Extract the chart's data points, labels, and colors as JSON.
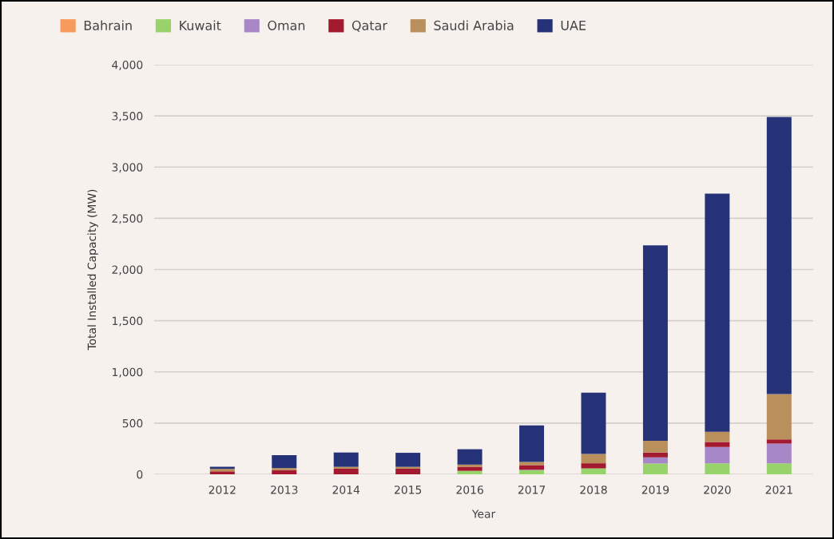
{
  "chart_data": {
    "type": "bar",
    "stacked": true,
    "xlabel": "Year",
    "ylabel": "Total Installed Capacity (MW)",
    "categories": [
      "2012",
      "2013",
      "2014",
      "2015",
      "2016",
      "2017",
      "2018",
      "2019",
      "2020",
      "2021"
    ],
    "series": [
      {
        "name": "Bahrain",
        "color": "#f79a5c",
        "values": [
          0,
          0,
          0,
          0,
          0,
          0,
          0,
          0,
          0,
          0
        ]
      },
      {
        "name": "Kuwait",
        "color": "#98d26a",
        "values": [
          0,
          0,
          0,
          0,
          34,
          40,
          58,
          105,
          108,
          108
        ]
      },
      {
        "name": "Oman",
        "color": "#a887c8",
        "values": [
          0,
          0,
          0,
          0,
          0,
          5,
          0,
          60,
          160,
          192
        ]
      },
      {
        "name": "Qatar",
        "color": "#a3192f",
        "values": [
          29,
          40,
          55,
          55,
          40,
          45,
          50,
          47,
          47,
          42
        ]
      },
      {
        "name": "Saudi Arabia",
        "color": "#b98f5b",
        "values": [
          24,
          21,
          18,
          18,
          21,
          30,
          90,
          116,
          100,
          442
        ]
      },
      {
        "name": "UAE",
        "color": "#253278",
        "values": [
          21,
          126,
          140,
          137,
          150,
          358,
          600,
          1907,
          2325,
          2706
        ]
      }
    ],
    "ylim": [
      0,
      4000
    ],
    "yticks": [
      {
        "value": 0,
        "label": "0"
      },
      {
        "value": 500,
        "label": "500"
      },
      {
        "value": 1000,
        "label": "1,000"
      },
      {
        "value": 1500,
        "label": "1,500"
      },
      {
        "value": 2000,
        "label": "2,000"
      },
      {
        "value": 2500,
        "label": "2,500"
      },
      {
        "value": 3000,
        "label": "3,000"
      },
      {
        "value": 3500,
        "label": "3,500"
      },
      {
        "value": 4000,
        "label": "4,000"
      }
    ],
    "grid": "y",
    "legend": "top left"
  }
}
